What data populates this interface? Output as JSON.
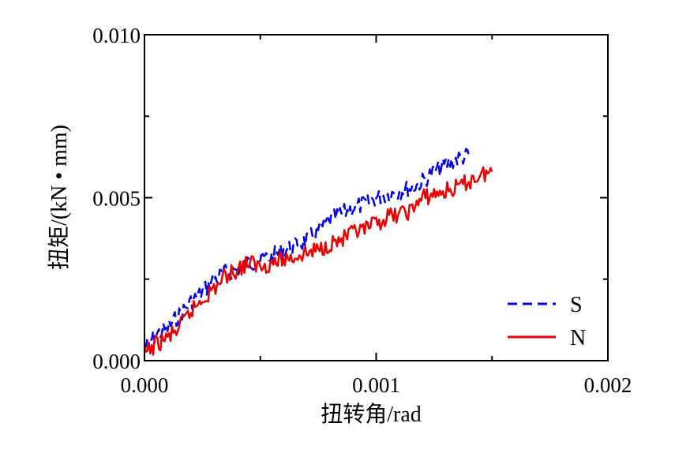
{
  "chart_data": {
    "type": "line",
    "title": "",
    "xlabel": "扭转角/rad",
    "ylabel": "扭矩/(kN • mm)",
    "xlim": [
      0,
      0.002
    ],
    "ylim": [
      0,
      0.01
    ],
    "x_ticks": [
      "0.000",
      "0.001",
      "0.002"
    ],
    "y_ticks": [
      "0.000",
      "0.005",
      "0.010"
    ],
    "legend_position": "bottom-right",
    "grid": false,
    "series": [
      {
        "name": "S",
        "color": "#0000ee",
        "dash": "dashed",
        "x": [
          0.0,
          5e-05,
          0.0001,
          0.00015,
          0.0002,
          0.00025,
          0.0003,
          0.00035,
          0.0004,
          0.00045,
          0.0005,
          0.00055,
          0.0006,
          0.00065,
          0.0007,
          0.00075,
          0.0008,
          0.00085,
          0.0009,
          0.00095,
          0.001,
          0.00105,
          0.0011,
          0.00115,
          0.0012,
          0.00125,
          0.0013,
          0.00135,
          0.0014
        ],
        "y": [
          0.0004,
          0.0008,
          0.001,
          0.0014,
          0.0018,
          0.0021,
          0.0025,
          0.0027,
          0.0028,
          0.003,
          0.0031,
          0.0032,
          0.0034,
          0.0035,
          0.0037,
          0.004,
          0.0043,
          0.0045,
          0.0047,
          0.0048,
          0.005,
          0.0051,
          0.0052,
          0.0053,
          0.0055,
          0.0058,
          0.006,
          0.0062,
          0.0063
        ]
      },
      {
        "name": "N",
        "color": "#ee0000",
        "dash": "solid",
        "x": [
          0.0,
          5e-05,
          0.0001,
          0.00015,
          0.0002,
          0.00025,
          0.0003,
          0.00035,
          0.0004,
          0.00045,
          0.0005,
          0.00055,
          0.0006,
          0.00065,
          0.0007,
          0.00075,
          0.0008,
          0.00085,
          0.0009,
          0.00095,
          0.001,
          0.00105,
          0.0011,
          0.00115,
          0.0012,
          0.00125,
          0.0013,
          0.00135,
          0.0014,
          0.00145,
          0.0015
        ],
        "y": [
          0.0002,
          0.0005,
          0.0007,
          0.001,
          0.0015,
          0.0019,
          0.0022,
          0.0026,
          0.0028,
          0.003,
          0.0029,
          0.003,
          0.0031,
          0.0032,
          0.0033,
          0.0034,
          0.0036,
          0.0037,
          0.0039,
          0.004,
          0.0042,
          0.0044,
          0.0045,
          0.0046,
          0.005,
          0.0051,
          0.0052,
          0.0053,
          0.0055,
          0.0057,
          0.0058
        ]
      }
    ]
  }
}
